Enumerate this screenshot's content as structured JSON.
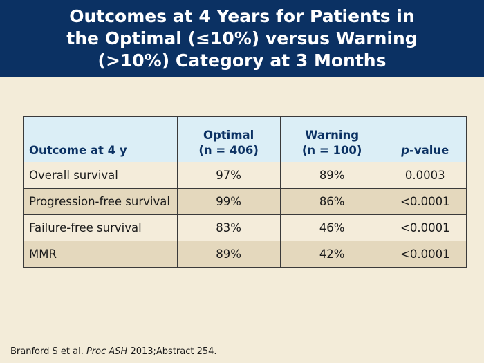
{
  "slide": {
    "title": "Outcomes at 4 Years for Patients in\nthe Optimal (≤10%) versus Warning\n(>10%) Category at 3 Months"
  },
  "table": {
    "headers": {
      "outcome": "Outcome at 4 y",
      "optimal_line1": "Optimal",
      "optimal_line2": "(n = 406)",
      "warning_line1": "Warning",
      "warning_line2": "(n = 100)",
      "p_italic": "p",
      "p_rest": "-value"
    },
    "rows": [
      {
        "outcome": "Overall survival",
        "optimal": "97%",
        "warning": "89%",
        "p": "0.0003"
      },
      {
        "outcome": "Progression-free survival",
        "optimal": "99%",
        "warning": "86%",
        "p": "<0.0001"
      },
      {
        "outcome": "Failure-free survival",
        "optimal": "83%",
        "warning": "46%",
        "p": "<0.0001"
      },
      {
        "outcome": "MMR",
        "optimal": "89%",
        "warning": "42%",
        "p": "<0.0001"
      }
    ]
  },
  "citation": {
    "authors": "Branford S et al. ",
    "journal": "Proc ASH",
    "rest": " 2013;Abstract 254."
  },
  "colors": {
    "header_bg": "#0b3163",
    "page_bg": "#f3ecd9",
    "table_header_bg": "#dbeef6",
    "row_alt_bg": "#e4d8bd"
  }
}
